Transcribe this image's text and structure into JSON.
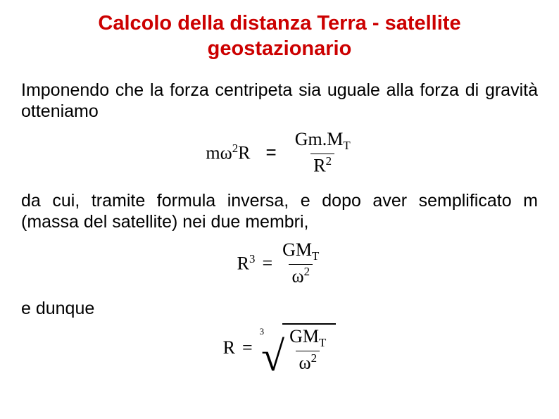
{
  "title": "Calcolo della distanza Terra - satellite geostazionario",
  "para1": "Imponendo che la forza centripeta sia uguale alla forza di gravità otteniamo",
  "eq1": {
    "left_m": "m",
    "left_omega": "ω",
    "left_sup": "2",
    "left_R": "R",
    "equals": "=",
    "num_G": "G",
    "num_m": "m.",
    "num_M": "M",
    "num_Tsub": "T",
    "den_R": "R",
    "den_sup": "2"
  },
  "para2": "da cui, tramite formula inversa, e dopo aver semplificato m (massa del satellite) nei due membri,",
  "eq2": {
    "R": "R",
    "Rsup": "3",
    "equals": "=",
    "num_G": "G",
    "num_M": "M",
    "num_Tsub": "T",
    "den_omega": "ω",
    "den_sup": "2"
  },
  "label3": "e dunque",
  "eq3": {
    "R": "R",
    "equals": "=",
    "root_index": "3",
    "num_G": "G",
    "num_M": "M",
    "num_Tsub": "T",
    "den_omega": "ω",
    "den_sup": "2"
  },
  "colors": {
    "title": "#cc0000",
    "text": "#000000",
    "background": "#ffffff"
  }
}
